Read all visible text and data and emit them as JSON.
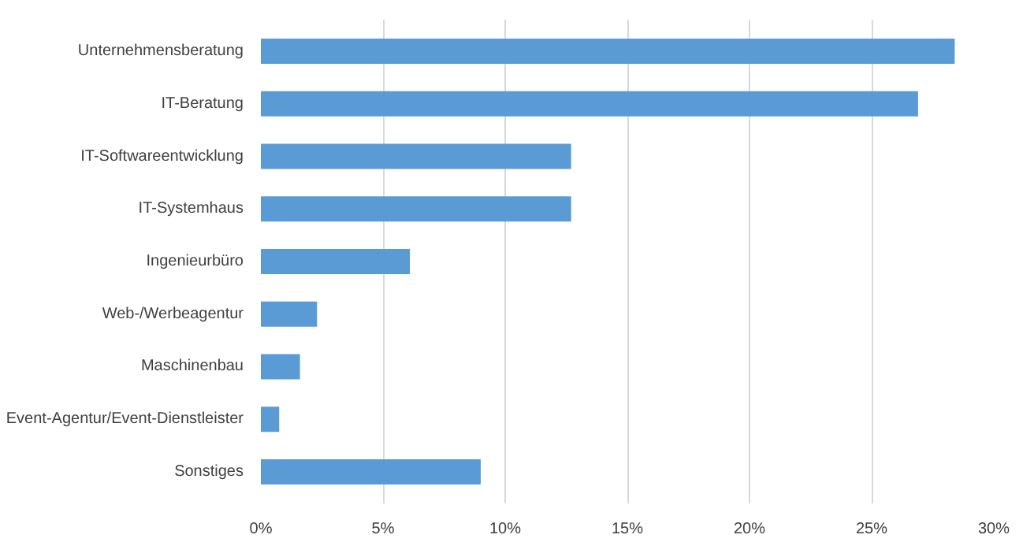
{
  "chart_data": {
    "type": "bar",
    "orientation": "horizontal",
    "categories": [
      "Unternehmensberatung",
      "IT-Beratung",
      "IT-Softwareentwicklung",
      "IT-Systemhaus",
      "Ingenieurbüro",
      "Web-/Werbeagentur",
      "Maschinenbau",
      "Event-Agentur/Event-Dienstleister",
      "Sonstiges"
    ],
    "values": [
      28.4,
      26.9,
      12.7,
      12.7,
      6.1,
      2.3,
      1.6,
      0.75,
      9.0
    ],
    "color": "#5b9bd5",
    "xlim": [
      0,
      30
    ],
    "xticks": [
      {
        "value": 0,
        "label": "0%"
      },
      {
        "value": 5,
        "label": "5%"
      },
      {
        "value": 10,
        "label": "10%"
      },
      {
        "value": 15,
        "label": "15%"
      },
      {
        "value": 20,
        "label": "20%"
      },
      {
        "value": 25,
        "label": "25%"
      },
      {
        "value": 30,
        "label": "30%"
      }
    ],
    "grid": "x"
  }
}
